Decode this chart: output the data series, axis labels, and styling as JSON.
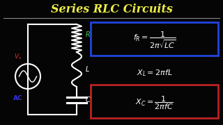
{
  "background_color": "#050505",
  "title": "Series RLC Circuits",
  "title_color": "#EEEE44",
  "title_fontsize": 11.5,
  "separator_color": "#888888",
  "formula1": "$f_R = \\dfrac{1}{2\\pi\\sqrt{LC}}$",
  "formula1_color": "#FFFFFF",
  "formula1_box_color": "#2244DD",
  "formula2": "$X_L = 2\\pi f L$",
  "formula2_color": "#FFFFFF",
  "formula3": "$X_C = \\dfrac{1}{2\\pi f C}$",
  "formula3_color": "#FFFFFF",
  "formula3_box_color": "#BB2222",
  "vs_color": "#DD3333",
  "ac_color": "#3333DD",
  "r_color": "#44CC44",
  "l_color": "#FFFFFF",
  "c_color": "#FFFFFF",
  "circuit_color": "#FFFFFF",
  "figw": 3.2,
  "figh": 1.8,
  "dpi": 100
}
